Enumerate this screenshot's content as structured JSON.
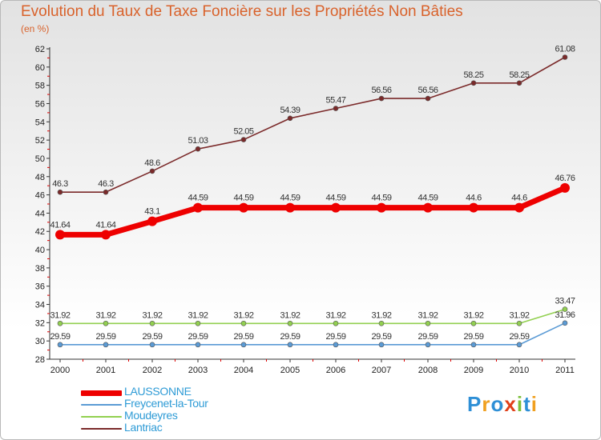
{
  "title": "Evolution du Taux de Taxe Foncière sur les Propriétés Non Bâties",
  "unit_label": "(en %)",
  "logo_text": "Proxiti",
  "chart_data": {
    "type": "line",
    "title": "Evolution du Taux de Taxe Foncière sur les Propriétés Non Bâties",
    "ylabel": "(en %)",
    "xlabel": "",
    "ylim": [
      28,
      62
    ],
    "yticks": [
      28,
      30,
      32,
      34,
      36,
      38,
      40,
      42,
      44,
      46,
      48,
      50,
      52,
      54,
      56,
      58,
      60,
      62
    ],
    "categories": [
      "2000",
      "2001",
      "2002",
      "2003",
      "2004",
      "2005",
      "2006",
      "2007",
      "2008",
      "2009",
      "2010",
      "2011"
    ],
    "grid": false,
    "legend_position": "bottom-left",
    "series": [
      {
        "name": "LAUSSONNE",
        "color": "#ee0000",
        "values": [
          41.64,
          41.64,
          43.1,
          44.59,
          44.59,
          44.59,
          44.59,
          44.59,
          44.59,
          44.6,
          44.6,
          46.76
        ]
      },
      {
        "name": "Freycenet-la-Tour",
        "color": "#5b9bd5",
        "values": [
          29.59,
          29.59,
          29.59,
          29.59,
          29.59,
          29.59,
          29.59,
          29.59,
          29.59,
          29.59,
          29.59,
          31.96
        ]
      },
      {
        "name": "Moudeyres",
        "color": "#92d050",
        "values": [
          31.92,
          31.92,
          31.92,
          31.92,
          31.92,
          31.92,
          31.92,
          31.92,
          31.92,
          31.92,
          31.92,
          33.47
        ]
      },
      {
        "name": "Lantriac",
        "color": "#7b2a2a",
        "values": [
          46.3,
          46.3,
          48.6,
          51.03,
          52.05,
          54.39,
          55.47,
          56.56,
          56.56,
          58.25,
          58.25,
          61.08
        ]
      }
    ],
    "labels": {
      "LAUSSONNE": [
        "41.64",
        "41.64",
        "43.1",
        "44.59",
        "44.59",
        "44.59",
        "44.59",
        "44.59",
        "44.59",
        "44.6",
        "44.6",
        "46.76"
      ],
      "Freycenet-la-Tour": [
        "29.59",
        "29.59",
        "29.59",
        "29.59",
        "29.59",
        "29.59",
        "29.59",
        "29.59",
        "29.59",
        "29.59",
        "29.59",
        "31.96"
      ],
      "Moudeyres": [
        "31.92",
        "31.92",
        "31.92",
        "31.92",
        "31.92",
        "31.92",
        "31.92",
        "31.92",
        "31.92",
        "31.92",
        "31.92",
        "33.47"
      ],
      "Lantriac": [
        "46.3",
        "46.3",
        "48.6",
        "51.03",
        "52.05",
        "54.39",
        "55.47",
        "56.56",
        "56.56",
        "58.25",
        "58.25",
        "61.08"
      ]
    }
  }
}
